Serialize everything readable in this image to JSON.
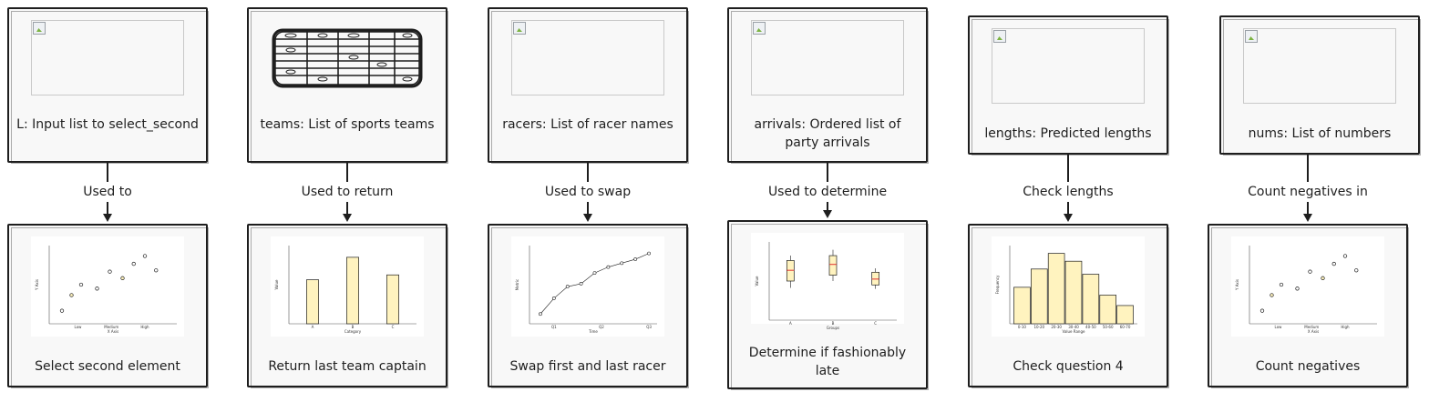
{
  "columns": [
    {
      "input": {
        "text": "L: Input list to select_second",
        "image": "broken-image"
      },
      "edge": "Used to",
      "output": {
        "text": "Select second element",
        "chart": "scatter-a"
      }
    },
    {
      "input": {
        "text": "teams: List of sports teams",
        "image": "table-sketch"
      },
      "edge": "Used to return",
      "output": {
        "text": "Return last team captain",
        "chart": "bar"
      }
    },
    {
      "input": {
        "text": "racers: List of racer names",
        "image": "broken-image"
      },
      "edge": "Used to swap",
      "output": {
        "text": "Swap first and last racer",
        "chart": "line"
      }
    },
    {
      "input": {
        "text": "arrivals: Ordered list of party arrivals",
        "image": "broken-image"
      },
      "edge": "Used to determine",
      "output": {
        "text": "Determine if fashionably late",
        "chart": "box"
      }
    },
    {
      "input": {
        "text": "lengths: Predicted lengths",
        "image": "broken-image"
      },
      "edge": "Check lengths",
      "output": {
        "text": "Check question 4",
        "chart": "histogram"
      }
    },
    {
      "input": {
        "text": "nums: List of numbers",
        "image": "broken-image"
      },
      "edge": "Count negatives in",
      "output": {
        "text": "Count negatives",
        "chart": "scatter-b"
      }
    }
  ],
  "chart_data": [
    {
      "type": "scatter",
      "xlabel": "X Axis",
      "ylabel": "Y Axis",
      "categories": [
        "Low",
        "Medium",
        "High"
      ],
      "points": [
        [
          0.4,
          1
        ],
        [
          0.7,
          2.2
        ],
        [
          1.0,
          3
        ],
        [
          1.5,
          2.7
        ],
        [
          1.9,
          4
        ],
        [
          2.3,
          3.5
        ],
        [
          2.65,
          4.6
        ],
        [
          3.0,
          5.2
        ],
        [
          3.35,
          4.1
        ]
      ],
      "ylim": [
        0,
        6
      ],
      "xlim": [
        0,
        4
      ]
    },
    {
      "type": "bar",
      "xlabel": "Category",
      "ylabel": "Value",
      "categories": [
        "A",
        "B",
        "C"
      ],
      "values": [
        45,
        68,
        50
      ],
      "ylim": [
        0,
        80
      ]
    },
    {
      "type": "line",
      "xlabel": "Time",
      "ylabel": "Metric",
      "tick_labels": [
        "Q1",
        "Q2",
        "Q3"
      ],
      "x": [
        0,
        1,
        2,
        3,
        4,
        5,
        6,
        7,
        8
      ],
      "y": [
        1,
        2.6,
        3.8,
        4.1,
        5.2,
        5.8,
        6.2,
        6.6,
        7.2
      ],
      "ylim": [
        0,
        8
      ]
    },
    {
      "type": "box",
      "xlabel": "Groups",
      "ylabel": "Value",
      "categories": [
        "A",
        "B",
        "C"
      ],
      "boxes": [
        {
          "min": 3.3,
          "q1": 4.0,
          "median": 5.1,
          "q3": 6.1,
          "max": 6.6
        },
        {
          "min": 4.0,
          "q1": 4.6,
          "median": 5.7,
          "q3": 6.6,
          "max": 7.2
        },
        {
          "min": 3.2,
          "q1": 3.6,
          "median": 4.2,
          "q3": 4.9,
          "max": 5.3
        }
      ],
      "ylim": [
        0,
        8
      ]
    },
    {
      "type": "bar",
      "xlabel": "Value Range",
      "ylabel": "Frequency",
      "categories": [
        "0-10",
        "10-20",
        "20-30",
        "30-40",
        "40-50",
        "50-60",
        "60-70"
      ],
      "values": [
        14,
        21,
        27,
        24,
        19,
        11,
        7
      ],
      "ylim": [
        0,
        30
      ]
    },
    {
      "type": "scatter",
      "xlabel": "X Axis",
      "ylabel": "Y Axis",
      "categories": [
        "Low",
        "Medium",
        "High"
      ],
      "points": [
        [
          0.4,
          1
        ],
        [
          0.7,
          2.2
        ],
        [
          1.0,
          3
        ],
        [
          1.5,
          2.7
        ],
        [
          1.9,
          4
        ],
        [
          2.3,
          3.5
        ],
        [
          2.65,
          4.6
        ],
        [
          3.0,
          5.2
        ],
        [
          3.35,
          4.1
        ]
      ],
      "ylim": [
        0,
        6
      ],
      "xlim": [
        0,
        4
      ]
    }
  ]
}
